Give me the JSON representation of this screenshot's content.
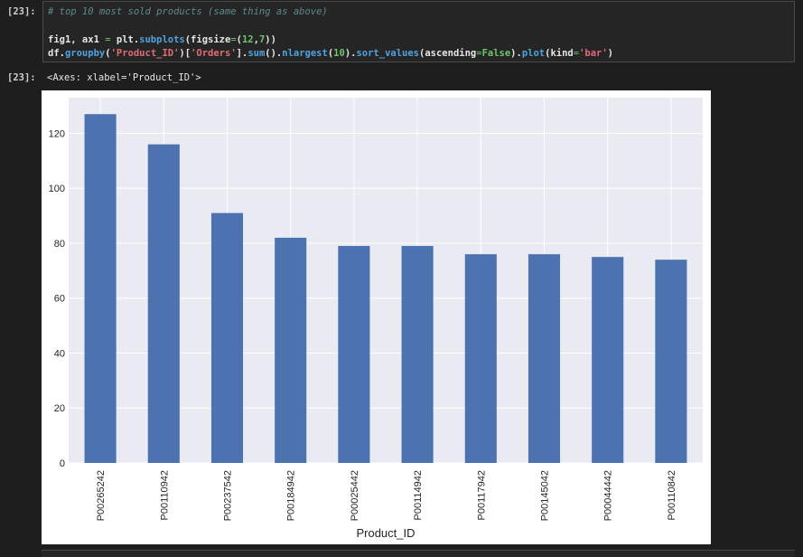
{
  "cell": {
    "input_prompt": "[23]:",
    "output_prompt": "[23]:",
    "code": {
      "line1_comment": "# top 10 most sold products (same thing as above)",
      "line2": [
        {
          "t": "fig1, ax1 ",
          "c": "default"
        },
        {
          "t": "=",
          "c": "op"
        },
        {
          "t": " plt.",
          "c": "default"
        },
        {
          "t": "subplots",
          "c": "fn"
        },
        {
          "t": "(figsize",
          "c": "default"
        },
        {
          "t": "=",
          "c": "op"
        },
        {
          "t": "(",
          "c": "default"
        },
        {
          "t": "12",
          "c": "num"
        },
        {
          "t": ",",
          "c": "default"
        },
        {
          "t": "7",
          "c": "num"
        },
        {
          "t": "))",
          "c": "default"
        }
      ],
      "line3": [
        {
          "t": "df.",
          "c": "default"
        },
        {
          "t": "groupby",
          "c": "fn"
        },
        {
          "t": "(",
          "c": "default"
        },
        {
          "t": "'Product_ID'",
          "c": "str"
        },
        {
          "t": ")[",
          "c": "default"
        },
        {
          "t": "'Orders'",
          "c": "str"
        },
        {
          "t": "].",
          "c": "default"
        },
        {
          "t": "sum",
          "c": "fn"
        },
        {
          "t": "().",
          "c": "default"
        },
        {
          "t": "nlargest",
          "c": "fn"
        },
        {
          "t": "(",
          "c": "default"
        },
        {
          "t": "10",
          "c": "num"
        },
        {
          "t": ").",
          "c": "default"
        },
        {
          "t": "sort_values",
          "c": "fn"
        },
        {
          "t": "(ascending",
          "c": "default"
        },
        {
          "t": "=",
          "c": "op"
        },
        {
          "t": "False",
          "c": "num"
        },
        {
          "t": ").",
          "c": "default"
        },
        {
          "t": "plot",
          "c": "fn"
        },
        {
          "t": "(kind",
          "c": "default"
        },
        {
          "t": "=",
          "c": "op"
        },
        {
          "t": "'bar'",
          "c": "str"
        },
        {
          "t": ")",
          "c": "default"
        }
      ]
    },
    "output_text": "<Axes: xlabel='Product_ID'>"
  },
  "colors": {
    "bar": "#4c72b0",
    "plot_bg": "#eaeaf2",
    "grid": "#ffffff"
  },
  "chart_data": {
    "type": "bar",
    "categories": [
      "P00265242",
      "P00110942",
      "P00237542",
      "P00184942",
      "P00025442",
      "P00114942",
      "P00117942",
      "P00145042",
      "P00044442",
      "P00110842"
    ],
    "values": [
      127,
      116,
      91,
      82,
      79,
      79,
      76,
      76,
      75,
      74
    ],
    "title": "",
    "xlabel": "Product_ID",
    "ylabel": "",
    "ylim": [
      0,
      133
    ],
    "yticks": [
      0,
      20,
      40,
      60,
      80,
      100,
      120
    ],
    "grid": true,
    "legend": "none"
  }
}
